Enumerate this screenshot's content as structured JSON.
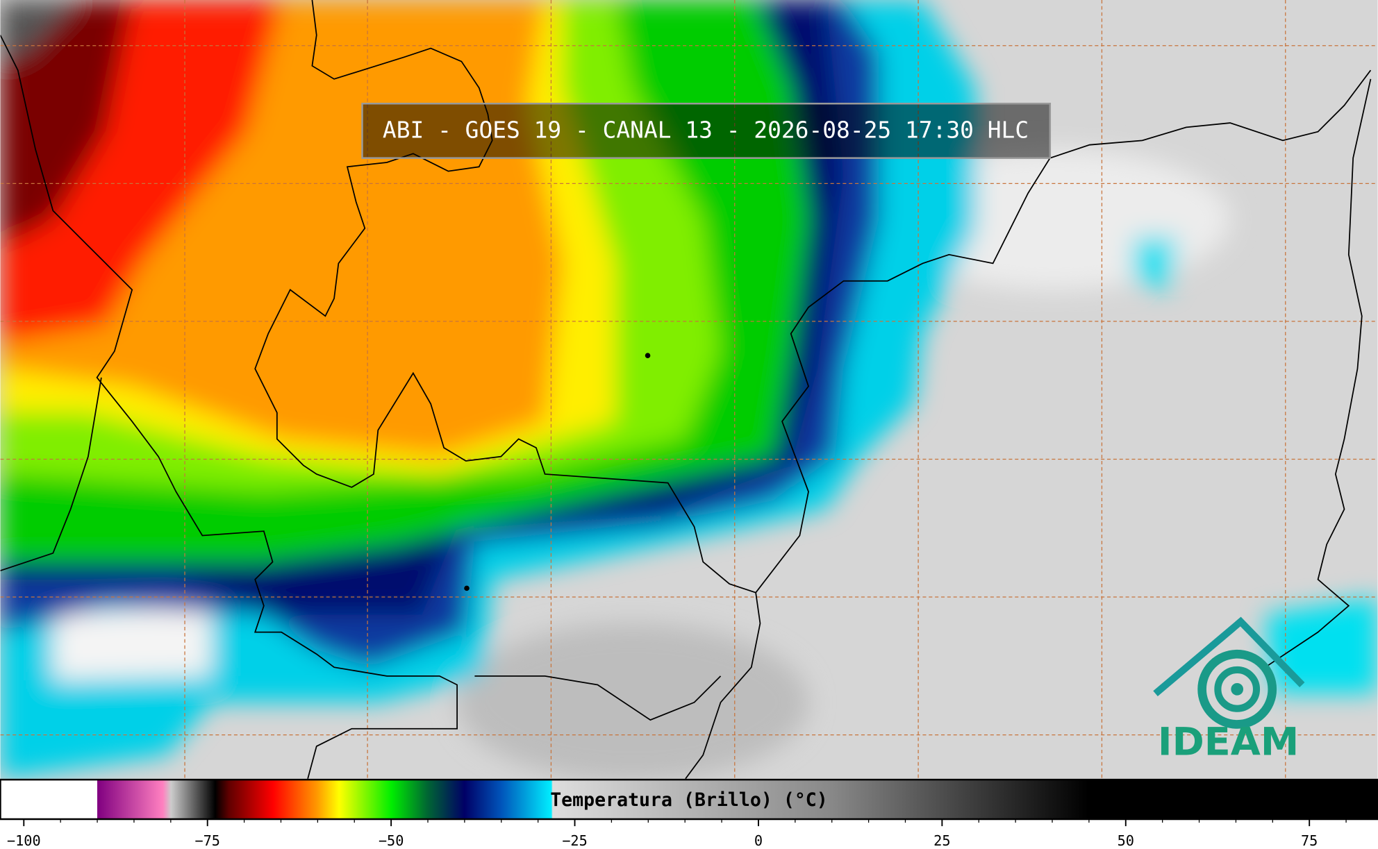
{
  "title": "ABI - GOES 19 - CANAL 13 - 2026-08-25 17:30 HLC",
  "logo_text": "IDEAM",
  "colorbar": {
    "label": "Temperatura (Brillo) (°C)",
    "lim": [
      -103.2,
      84.3
    ],
    "ticks": [
      {
        "value": -100,
        "label": "−100"
      },
      {
        "value": -75,
        "label": "−75"
      },
      {
        "value": -50,
        "label": "−50"
      },
      {
        "value": -25,
        "label": "−25"
      },
      0,
      25,
      50,
      75
    ],
    "minor_tick_step": 5
  }
}
